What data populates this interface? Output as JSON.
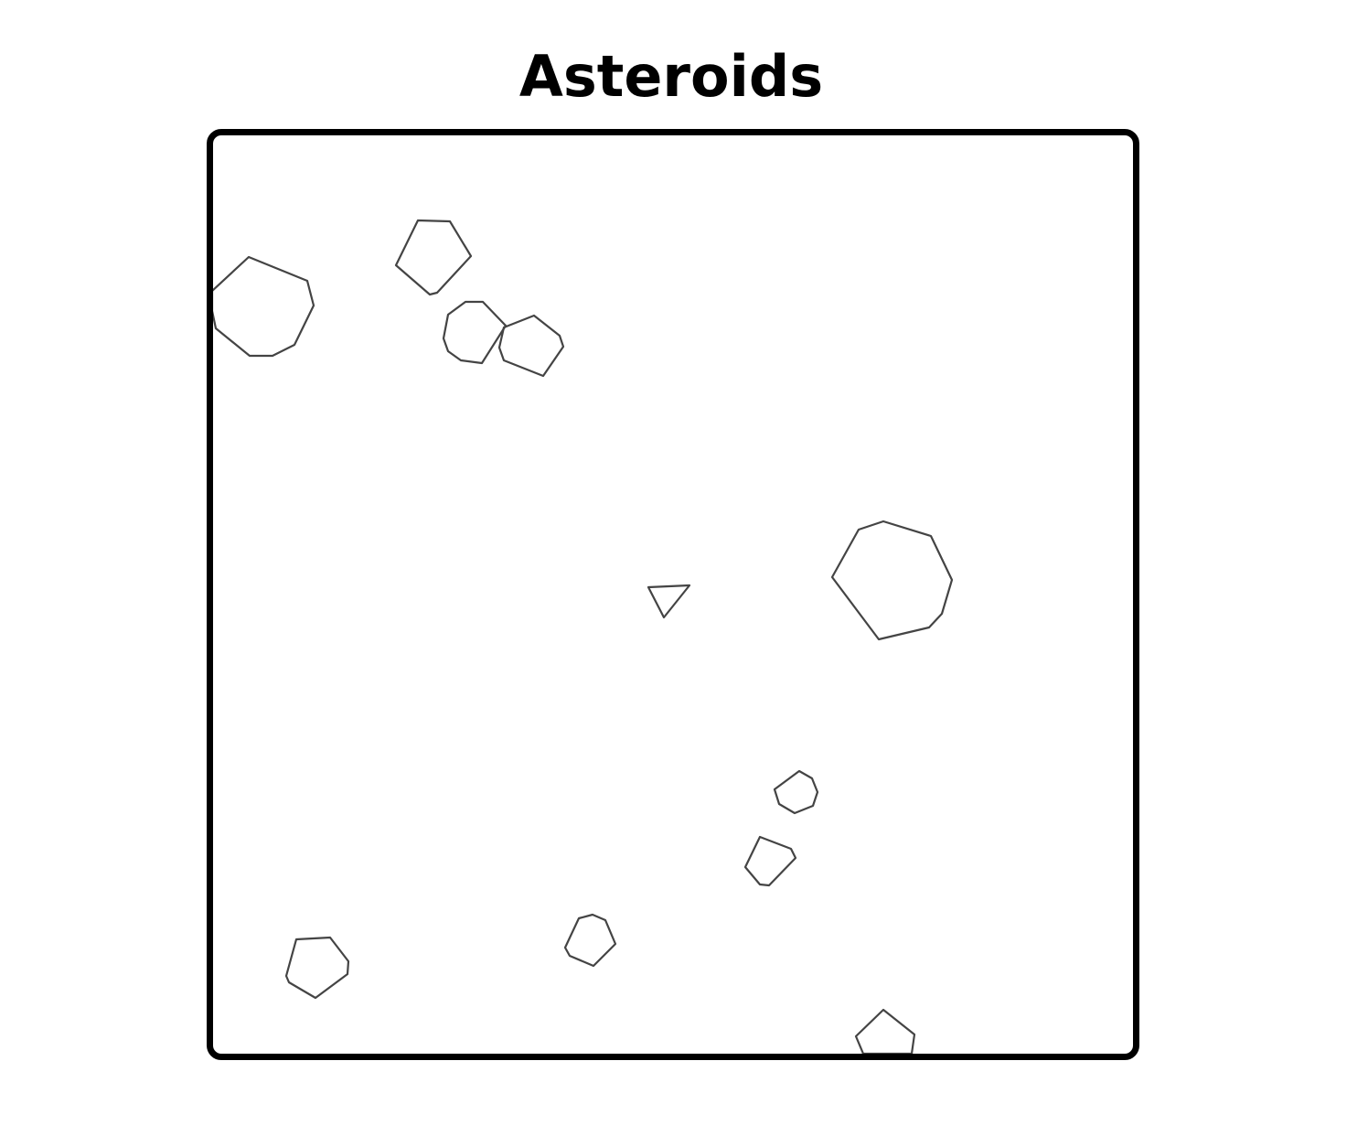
{
  "page": {
    "title": "Asteroids"
  },
  "game": {
    "colors": {
      "frame_border": "#000000",
      "background": "#ffffff",
      "outline": "#444444"
    },
    "ship": {
      "name": "player-ship",
      "shape": "triangle"
    },
    "asteroids": [
      {
        "name": "asteroid-large-left",
        "size": "large"
      },
      {
        "name": "asteroid-pentagon-top",
        "size": "medium"
      },
      {
        "name": "asteroid-cluster-left",
        "size": "medium"
      },
      {
        "name": "asteroid-cluster-right",
        "size": "medium"
      },
      {
        "name": "asteroid-large-right",
        "size": "large"
      },
      {
        "name": "asteroid-small-center-right",
        "size": "small"
      },
      {
        "name": "asteroid-small-lower-center",
        "size": "small"
      },
      {
        "name": "asteroid-small-bottom-center",
        "size": "small"
      },
      {
        "name": "asteroid-bottom-left",
        "size": "medium"
      },
      {
        "name": "asteroid-bottom-edge",
        "size": "medium"
      }
    ]
  }
}
